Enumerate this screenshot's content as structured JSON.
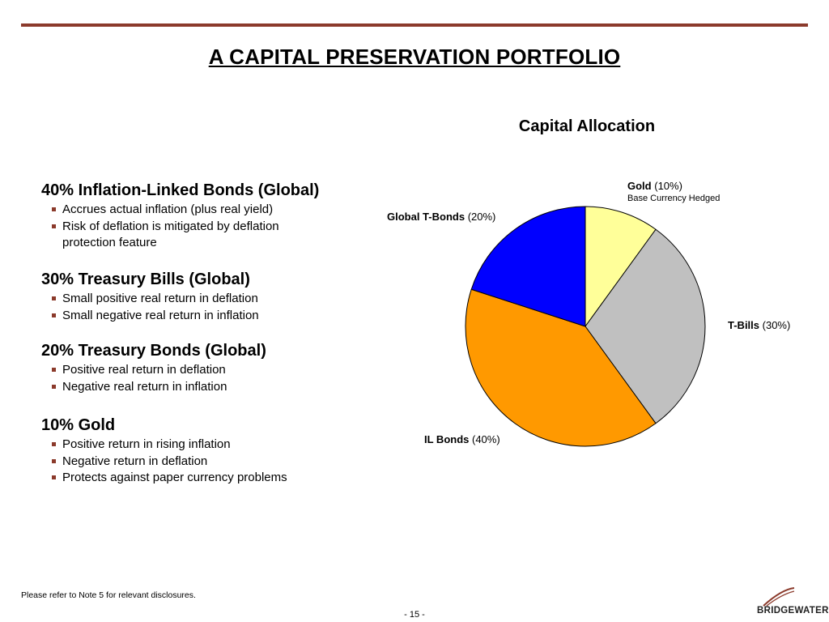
{
  "title": "A CAPITAL PRESERVATION PORTFOLIO",
  "sections": [
    {
      "heading": "40% Inflation-Linked Bonds (Global)",
      "bullets": [
        "Accrues actual inflation (plus real yield)",
        "Risk of deflation is mitigated by deflation protection feature"
      ]
    },
    {
      "heading": "30% Treasury Bills (Global)",
      "bullets": [
        "Small positive real return in deflation",
        "Small negative real return in inflation"
      ]
    },
    {
      "heading": "20% Treasury Bonds (Global)",
      "bullets": [
        "Positive real return in deflation",
        "Negative real return in inflation"
      ]
    },
    {
      "heading": "10% Gold",
      "bullets": [
        "Positive return in rising inflation",
        "Negative return in deflation",
        "Protects against paper currency problems"
      ]
    }
  ],
  "chart_data": {
    "type": "pie",
    "title": "Capital Allocation",
    "slices": [
      {
        "label": "Gold",
        "pct_text": "(10%)",
        "value": 10,
        "color": "#ffff99",
        "note": "Base Currency Hedged"
      },
      {
        "label": "T-Bills",
        "pct_text": "(30%)",
        "value": 30,
        "color": "#c0c0c0"
      },
      {
        "label": "IL Bonds",
        "pct_text": "(40%)",
        "value": 40,
        "color": "#ff9900"
      },
      {
        "label": "Global T-Bonds",
        "pct_text": "(20%)",
        "value": 20,
        "color": "#0000ff"
      }
    ]
  },
  "footer": {
    "note": "Please refer to Note 5 for relevant disclosures.",
    "page": "- 15 -",
    "logo": "BRIDGEWATER"
  }
}
